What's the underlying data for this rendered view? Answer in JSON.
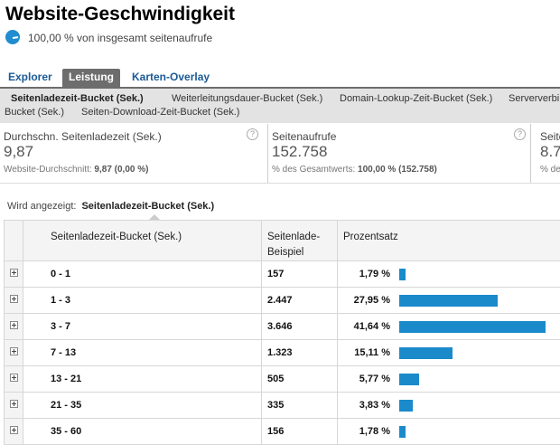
{
  "header": {
    "title": "Website-Geschwindigkeit",
    "subtitle": "100,00 % von insgesamt seitenaufrufe"
  },
  "tabs": [
    {
      "label": "Explorer",
      "active": false
    },
    {
      "label": "Leistung",
      "active": true
    },
    {
      "label": "Karten-Overlay",
      "active": false
    }
  ],
  "metric_nav": [
    {
      "label": "Seitenladezeit-Bucket (Sek.)",
      "selected": true
    },
    {
      "label": "Weiterleitungsdauer-Bucket (Sek.)",
      "selected": false
    },
    {
      "label": "Domain-Lookup-Zeit-Bucket (Sek.)",
      "selected": false
    },
    {
      "label": "Serververbi",
      "selected": false
    },
    {
      "label": "Bucket (Sek.)",
      "selected": false
    },
    {
      "label": "Seiten-Download-Zeit-Bucket (Sek.)",
      "selected": false
    }
  ],
  "scorecards": [
    {
      "label": "Durchschn. Seitenladezeit (Sek.)",
      "value": "9,87",
      "foot_label": "Website-Durchschnitt:",
      "foot_value": "9,87 (0,00 %)",
      "help": "?"
    },
    {
      "label": "Seitenaufrufe",
      "value": "152.758",
      "foot_label": "% des Gesamtwerts:",
      "foot_value": "100,00 % (152.758)",
      "help": "?"
    },
    {
      "label": "Seite",
      "value": "8.7",
      "foot_label": "% de",
      "foot_value": "",
      "help": ""
    }
  ],
  "showing": {
    "label": "Wird angezeigt:",
    "value": "Seitenladezeit-Bucket (Sek.)"
  },
  "table": {
    "headers": [
      "Seitenladezeit-Bucket (Sek.)",
      "Seitenlade-\nBeispiel",
      "Prozentsatz"
    ],
    "rows": [
      {
        "bucket": "0 - 1",
        "count": "157",
        "percent": "1,79 %",
        "share": 1.79
      },
      {
        "bucket": "1 - 3",
        "count": "2.447",
        "percent": "27,95 %",
        "share": 27.95
      },
      {
        "bucket": "3 - 7",
        "count": "3.646",
        "percent": "41,64 %",
        "share": 41.64
      },
      {
        "bucket": "7 - 13",
        "count": "1.323",
        "percent": "15,11 %",
        "share": 15.11
      },
      {
        "bucket": "13 - 21",
        "count": "505",
        "percent": "5,77 %",
        "share": 5.77
      },
      {
        "bucket": "21 - 35",
        "count": "335",
        "percent": "3,83 %",
        "share": 3.83
      },
      {
        "bucket": "35 - 60",
        "count": "156",
        "percent": "1,78 %",
        "share": 1.78
      }
    ]
  },
  "colors": {
    "bar": "#1a8acb",
    "tab_active": "#6d6d6d",
    "link": "#1a5a96"
  },
  "icons": {
    "pie": "pie-chart-icon",
    "help": "help-icon",
    "expand": "expand-plus-icon"
  }
}
